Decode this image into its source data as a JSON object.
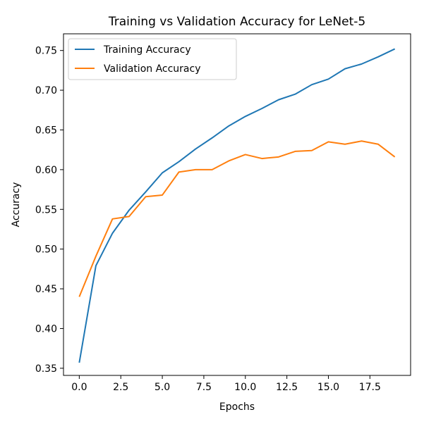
{
  "chart_data": {
    "type": "line",
    "title": "Training vs Validation Accuracy for LeNet-5",
    "xlabel": "Epochs",
    "ylabel": "Accuracy",
    "xlim": [
      -0.95,
      19.95
    ],
    "ylim": [
      0.341,
      0.771
    ],
    "x_ticks": [
      "0.0",
      "2.5",
      "5.0",
      "7.5",
      "10.0",
      "12.5",
      "15.0",
      "17.5"
    ],
    "x_tick_values": [
      0,
      2.5,
      5,
      7.5,
      10,
      12.5,
      15,
      17.5
    ],
    "y_ticks": [
      "0.35",
      "0.40",
      "0.45",
      "0.50",
      "0.55",
      "0.60",
      "0.65",
      "0.70",
      "0.75"
    ],
    "y_tick_values": [
      0.35,
      0.4,
      0.45,
      0.5,
      0.55,
      0.6,
      0.65,
      0.7,
      0.75
    ],
    "legend_position": "top-left",
    "grid": false,
    "x": [
      0,
      1,
      2,
      3,
      4,
      5,
      6,
      7,
      8,
      9,
      10,
      11,
      12,
      13,
      14,
      15,
      16,
      17,
      18,
      19
    ],
    "series": [
      {
        "name": "Training Accuracy",
        "color": "#1f77b4",
        "values": [
          0.357,
          0.479,
          0.52,
          0.549,
          0.572,
          0.596,
          0.61,
          0.626,
          0.64,
          0.655,
          0.667,
          0.677,
          0.688,
          0.695,
          0.707,
          0.714,
          0.727,
          0.733,
          0.742,
          0.752
        ]
      },
      {
        "name": "Validation Accuracy",
        "color": "#ff7f0e",
        "values": [
          0.44,
          0.491,
          0.538,
          0.541,
          0.566,
          0.568,
          0.597,
          0.6,
          0.6,
          0.611,
          0.619,
          0.614,
          0.616,
          0.623,
          0.624,
          0.635,
          0.632,
          0.636,
          0.632,
          0.616
        ]
      }
    ]
  }
}
